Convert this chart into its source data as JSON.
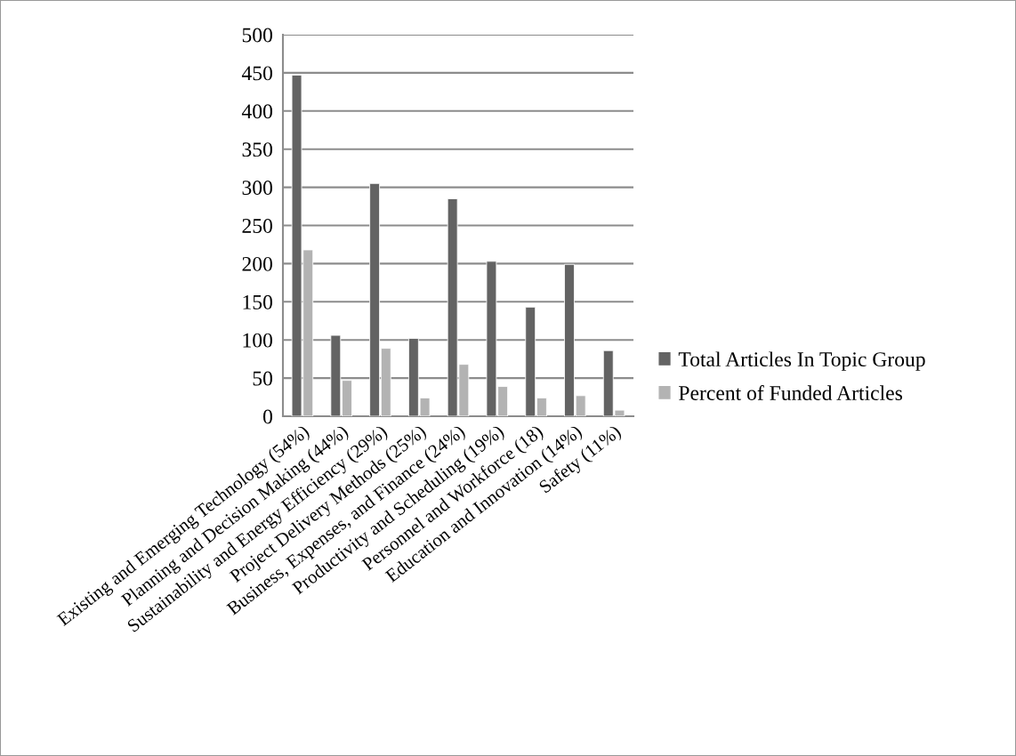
{
  "chart_data": {
    "type": "bar",
    "categories": [
      "Existing and Emerging Technology (54%)",
      "Planning and Decision Making (44%)",
      "Sustainability and Energy Efficiency (29%)",
      "Project Delivery Methods (25%)",
      "Business, Expenses, and Finance (24%)",
      "Productivity and Scheduling (19%)",
      "Personnel and Workforce (18)",
      "Education and Innovation (14%)",
      "Safety (11%)"
    ],
    "series": [
      {
        "name": "Total Articles In Topic Group",
        "color": "#636363",
        "values": [
          447,
          106,
          305,
          102,
          285,
          203,
          143,
          199,
          86
        ]
      },
      {
        "name": "Percent of Funded Articles",
        "color": "#b3b3b3",
        "values": [
          218,
          47,
          89,
          24,
          68,
          39,
          24,
          27,
          8
        ]
      }
    ],
    "ylim": [
      0,
      500
    ],
    "yticks": [
      0,
      50,
      100,
      150,
      200,
      250,
      300,
      350,
      400,
      450,
      500
    ],
    "grid": "y",
    "legend": "right"
  }
}
